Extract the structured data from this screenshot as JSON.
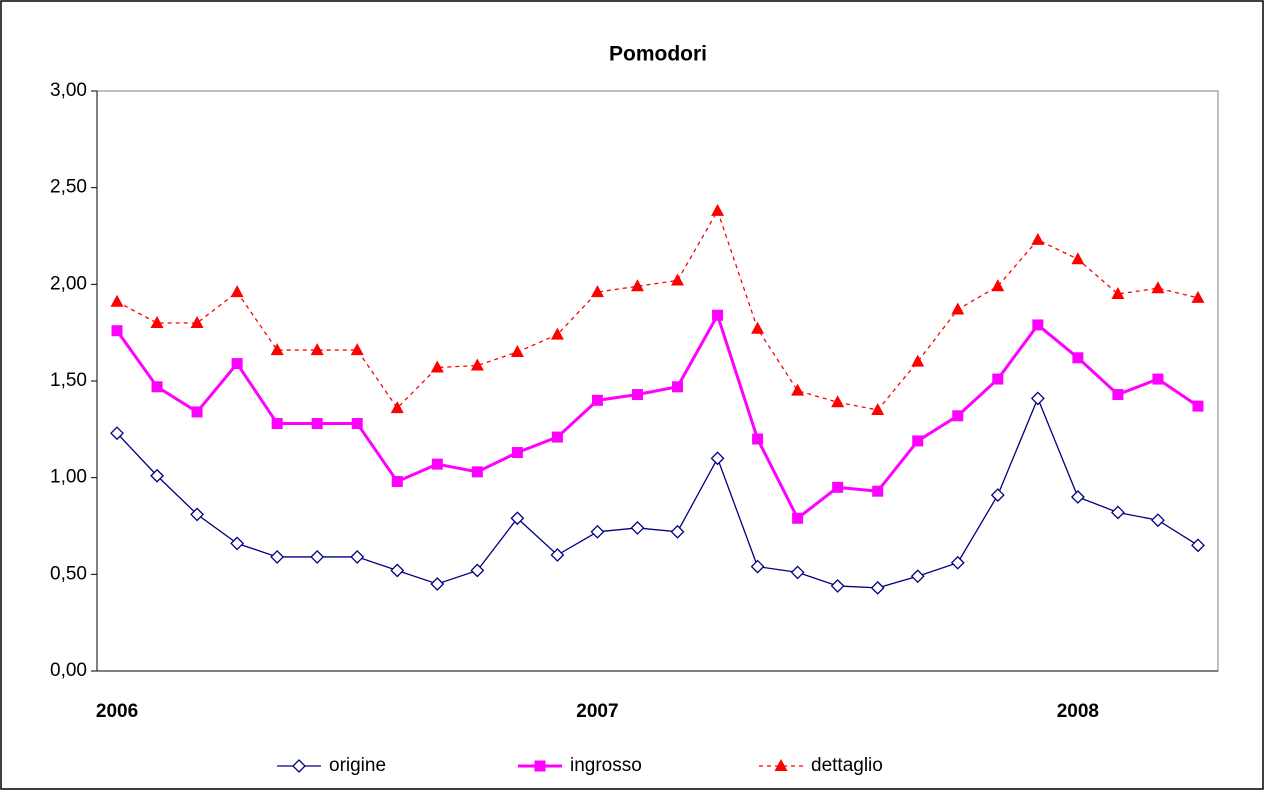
{
  "chart_data": {
    "type": "line",
    "title": "Pomodori",
    "categories": [
      "2006",
      null,
      null,
      null,
      null,
      null,
      null,
      null,
      null,
      null,
      null,
      null,
      "2007",
      null,
      null,
      null,
      null,
      null,
      null,
      null,
      null,
      null,
      null,
      null,
      "2008",
      null,
      null,
      null
    ],
    "series": [
      {
        "name": "origine",
        "color": "#000080",
        "marker": "diamond",
        "dash": false,
        "values": [
          1.23,
          1.01,
          0.81,
          0.66,
          0.59,
          0.59,
          0.59,
          0.52,
          0.45,
          0.52,
          0.79,
          0.6,
          0.72,
          0.74,
          0.72,
          1.1,
          0.54,
          0.51,
          0.44,
          0.43,
          0.49,
          0.56,
          0.91,
          1.41,
          0.9,
          0.82,
          0.78,
          0.65
        ]
      },
      {
        "name": "ingrosso",
        "color": "#ff00ff",
        "marker": "square",
        "dash": false,
        "values": [
          1.76,
          1.47,
          1.34,
          1.59,
          1.28,
          1.28,
          1.28,
          0.98,
          1.07,
          1.03,
          1.13,
          1.21,
          1.4,
          1.43,
          1.47,
          1.84,
          1.2,
          0.79,
          0.95,
          0.93,
          1.19,
          1.32,
          1.51,
          1.79,
          1.62,
          1.43,
          1.51,
          1.37
        ]
      },
      {
        "name": "dettaglio",
        "color": "#ff0000",
        "marker": "triangle",
        "dash": true,
        "values": [
          1.91,
          1.8,
          1.8,
          1.96,
          1.66,
          1.66,
          1.66,
          1.36,
          1.57,
          1.58,
          1.65,
          1.74,
          1.96,
          1.99,
          2.02,
          2.38,
          1.77,
          1.45,
          1.39,
          1.35,
          1.6,
          1.87,
          1.99,
          2.23,
          2.13,
          1.95,
          1.98,
          1.93
        ]
      }
    ],
    "ylim": [
      0,
      3
    ],
    "yticks": [
      {
        "value": 0,
        "label": "0,00"
      },
      {
        "value": 0.5,
        "label": "0,50"
      },
      {
        "value": 1,
        "label": "1,00"
      },
      {
        "value": 1.5,
        "label": "1,50"
      },
      {
        "value": 2,
        "label": "2,00"
      },
      {
        "value": 2.5,
        "label": "2,50"
      },
      {
        "value": 3,
        "label": "3,00"
      }
    ],
    "grid": false,
    "legend": "bottom"
  }
}
